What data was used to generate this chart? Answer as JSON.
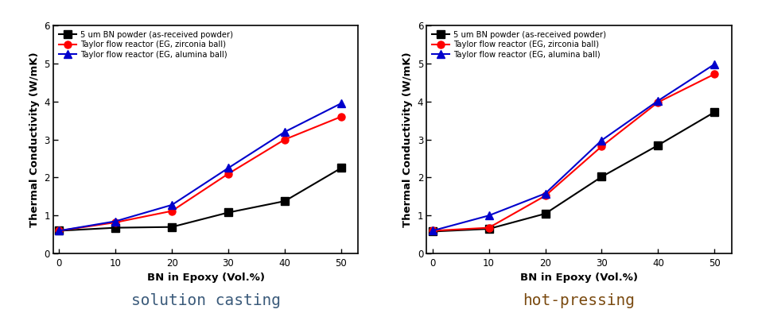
{
  "x": [
    0,
    10,
    20,
    30,
    40,
    50
  ],
  "left_chart": {
    "title": "solution casting",
    "title_color": "#3a5a7a",
    "series": [
      {
        "label": "5 um BN powder (as-received powder)",
        "color": "#000000",
        "marker": "s",
        "values": [
          0.6,
          0.68,
          0.7,
          1.08,
          1.38,
          2.25
        ]
      },
      {
        "label": "Taylor flow reactor (EG, zirconia ball)",
        "color": "#ff0000",
        "marker": "o",
        "values": [
          0.6,
          0.82,
          1.12,
          2.1,
          3.0,
          3.6
        ]
      },
      {
        "label": "Taylor flow reactor (EG, alumina ball)",
        "color": "#0000cc",
        "marker": "^",
        "values": [
          0.6,
          0.85,
          1.28,
          2.25,
          3.2,
          3.95
        ]
      }
    ]
  },
  "right_chart": {
    "title": "hot-pressing",
    "title_color": "#7a4a10",
    "series": [
      {
        "label": "5 um BN powder (as-received powder)",
        "color": "#000000",
        "marker": "s",
        "values": [
          0.58,
          0.65,
          1.05,
          2.02,
          2.85,
          3.72
        ]
      },
      {
        "label": "Taylor flow reactor (EG, zirconia ball)",
        "color": "#ff0000",
        "marker": "o",
        "values": [
          0.6,
          0.68,
          1.52,
          2.82,
          3.98,
          4.72
        ]
      },
      {
        "label": "Taylor flow reactor (EG, alumina ball)",
        "color": "#0000cc",
        "marker": "^",
        "values": [
          0.6,
          1.0,
          1.58,
          2.98,
          4.02,
          4.98
        ]
      }
    ]
  },
  "ylabel": "Thermal Conductivity (W/mK)",
  "xlabel": "BN in Epoxy (Vol.%)",
  "ylim": [
    0,
    6
  ],
  "yticks": [
    0,
    1,
    2,
    3,
    4,
    5,
    6
  ],
  "xticks": [
    0,
    10,
    20,
    30,
    40,
    50
  ],
  "legend_fontsize": 7.2,
  "axis_label_fontsize": 9.5,
  "tick_fontsize": 8.5,
  "title_fontsize": 14,
  "linewidth": 1.5,
  "markersize": 6.5
}
